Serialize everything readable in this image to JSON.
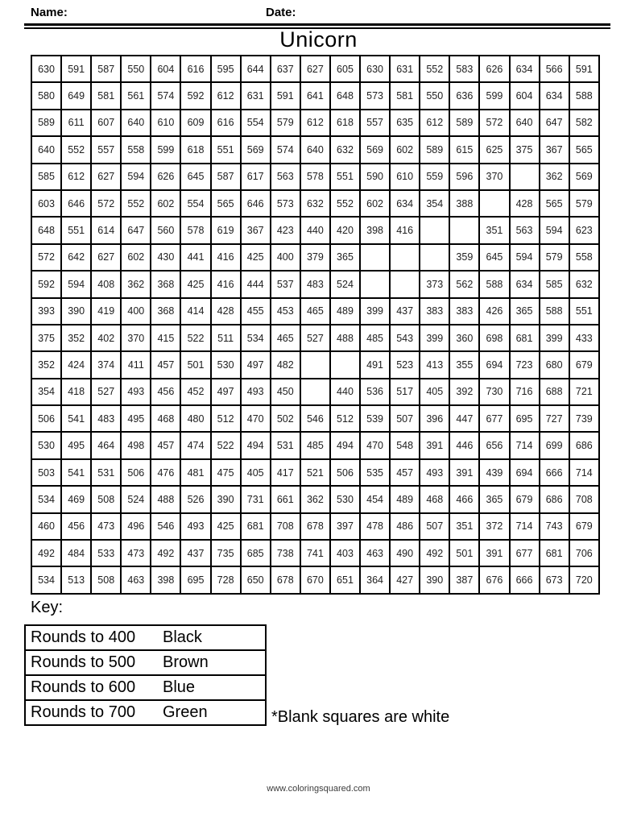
{
  "header": {
    "name_label": "Name:",
    "date_label": "Date:",
    "title": "Unicorn"
  },
  "grid": {
    "rows": [
      [
        "630",
        "591",
        "587",
        "550",
        "604",
        "616",
        "595",
        "644",
        "637",
        "627",
        "605",
        "630",
        "631",
        "552",
        "583",
        "626",
        "634",
        "566",
        "591"
      ],
      [
        "580",
        "649",
        "581",
        "561",
        "574",
        "592",
        "612",
        "631",
        "591",
        "641",
        "648",
        "573",
        "581",
        "550",
        "636",
        "599",
        "604",
        "634",
        "588"
      ],
      [
        "589",
        "611",
        "607",
        "640",
        "610",
        "609",
        "616",
        "554",
        "579",
        "612",
        "618",
        "557",
        "635",
        "612",
        "589",
        "572",
        "640",
        "647",
        "582"
      ],
      [
        "640",
        "552",
        "557",
        "558",
        "599",
        "618",
        "551",
        "569",
        "574",
        "640",
        "632",
        "569",
        "602",
        "589",
        "615",
        "625",
        "375",
        "367",
        "565"
      ],
      [
        "585",
        "612",
        "627",
        "594",
        "626",
        "645",
        "587",
        "617",
        "563",
        "578",
        "551",
        "590",
        "610",
        "559",
        "596",
        "370",
        "",
        "362",
        "569"
      ],
      [
        "603",
        "646",
        "572",
        "552",
        "602",
        "554",
        "565",
        "646",
        "573",
        "632",
        "552",
        "602",
        "634",
        "354",
        "388",
        "",
        "428",
        "565",
        "579"
      ],
      [
        "648",
        "551",
        "614",
        "647",
        "560",
        "578",
        "619",
        "367",
        "423",
        "440",
        "420",
        "398",
        "416",
        "",
        "",
        "351",
        "563",
        "594",
        "623"
      ],
      [
        "572",
        "642",
        "627",
        "602",
        "430",
        "441",
        "416",
        "425",
        "400",
        "379",
        "365",
        "",
        "",
        "",
        "359",
        "645",
        "594",
        "579",
        "558"
      ],
      [
        "592",
        "594",
        "408",
        "362",
        "368",
        "425",
        "416",
        "444",
        "537",
        "483",
        "524",
        "",
        "",
        "373",
        "562",
        "588",
        "634",
        "585",
        "632"
      ],
      [
        "393",
        "390",
        "419",
        "400",
        "368",
        "414",
        "428",
        "455",
        "453",
        "465",
        "489",
        "399",
        "437",
        "383",
        "383",
        "426",
        "365",
        "588",
        "551"
      ],
      [
        "375",
        "352",
        "402",
        "370",
        "415",
        "522",
        "511",
        "534",
        "465",
        "527",
        "488",
        "485",
        "543",
        "399",
        "360",
        "698",
        "681",
        "399",
        "433"
      ],
      [
        "352",
        "424",
        "374",
        "411",
        "457",
        "501",
        "530",
        "497",
        "482",
        "",
        "",
        "491",
        "523",
        "413",
        "355",
        "694",
        "723",
        "680",
        "679"
      ],
      [
        "354",
        "418",
        "527",
        "493",
        "456",
        "452",
        "497",
        "493",
        "450",
        "",
        "440",
        "536",
        "517",
        "405",
        "392",
        "730",
        "716",
        "688",
        "721"
      ],
      [
        "506",
        "541",
        "483",
        "495",
        "468",
        "480",
        "512",
        "470",
        "502",
        "546",
        "512",
        "539",
        "507",
        "396",
        "447",
        "677",
        "695",
        "727",
        "739"
      ],
      [
        "530",
        "495",
        "464",
        "498",
        "457",
        "474",
        "522",
        "494",
        "531",
        "485",
        "494",
        "470",
        "548",
        "391",
        "446",
        "656",
        "714",
        "699",
        "686"
      ],
      [
        "503",
        "541",
        "531",
        "506",
        "476",
        "481",
        "475",
        "405",
        "417",
        "521",
        "506",
        "535",
        "457",
        "493",
        "391",
        "439",
        "694",
        "666",
        "714"
      ],
      [
        "534",
        "469",
        "508",
        "524",
        "488",
        "526",
        "390",
        "731",
        "661",
        "362",
        "530",
        "454",
        "489",
        "468",
        "466",
        "365",
        "679",
        "686",
        "708"
      ],
      [
        "460",
        "456",
        "473",
        "496",
        "546",
        "493",
        "425",
        "681",
        "708",
        "678",
        "397",
        "478",
        "486",
        "507",
        "351",
        "372",
        "714",
        "743",
        "679"
      ],
      [
        "492",
        "484",
        "533",
        "473",
        "492",
        "437",
        "735",
        "685",
        "738",
        "741",
        "403",
        "463",
        "490",
        "492",
        "501",
        "391",
        "677",
        "681",
        "706"
      ],
      [
        "534",
        "513",
        "508",
        "463",
        "398",
        "695",
        "728",
        "650",
        "678",
        "670",
        "651",
        "364",
        "427",
        "390",
        "387",
        "676",
        "666",
        "673",
        "720"
      ]
    ]
  },
  "key": {
    "label": "Key:",
    "rows": [
      {
        "rule": "Rounds to 400",
        "color": "Black"
      },
      {
        "rule": "Rounds to 500",
        "color": "Brown"
      },
      {
        "rule": "Rounds to 600",
        "color": "Blue"
      },
      {
        "rule": "Rounds to 700",
        "color": "Green"
      }
    ],
    "note": "*Blank squares are white"
  },
  "footer": {
    "url": "www.coloringsquared.com"
  },
  "colors": {
    "border": "#000000",
    "text": "#000000",
    "background": "#ffffff"
  }
}
